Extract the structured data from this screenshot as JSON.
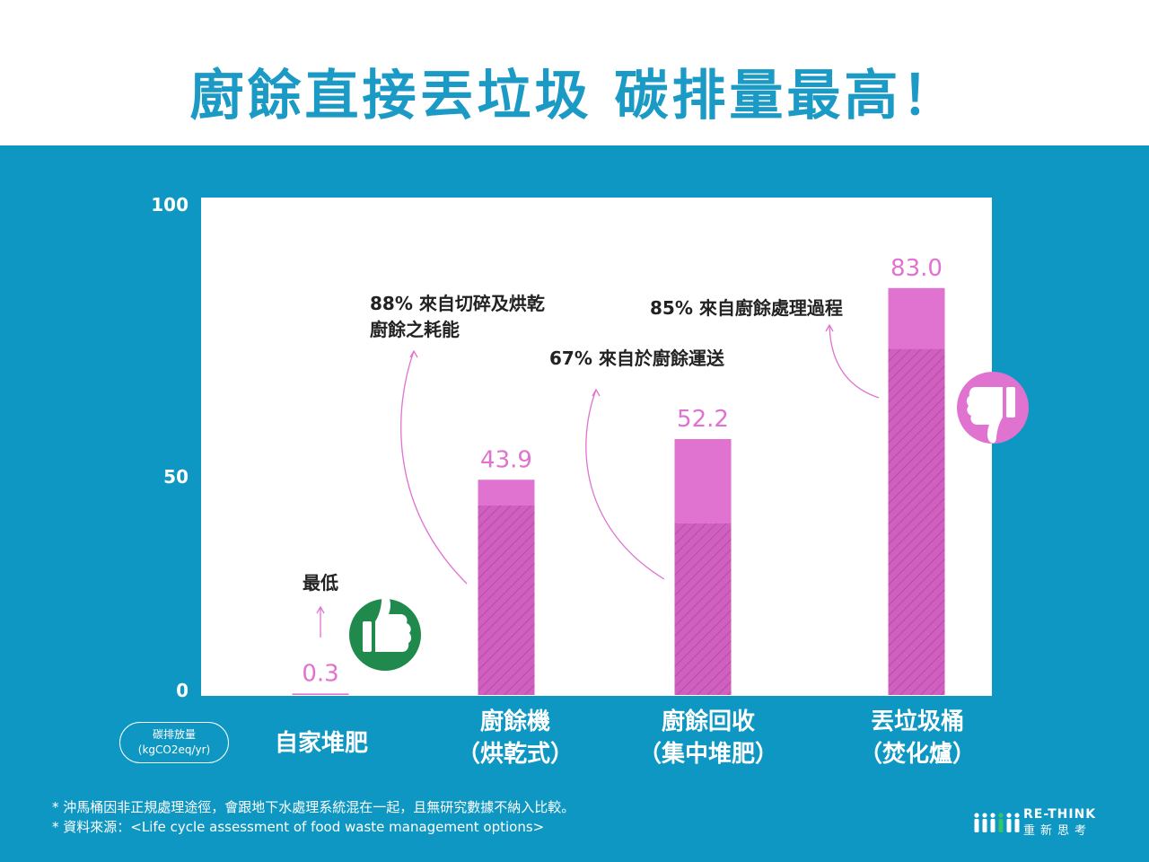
{
  "title": "廚餘直接丟垃圾 碳排量最高！",
  "colors": {
    "panel": "#0e97c2",
    "title": "#1a9ac4",
    "bar": "#e072d0",
    "bar_hatch_stroke": "#b94aa8",
    "annotation": "#e072d0",
    "thumb_up": "#1f8a4c",
    "thumb_down": "#e072d0"
  },
  "unit_label": {
    "line1": "碳排放量",
    "line2": "(kgCO2eq/yr)"
  },
  "chart_data": {
    "type": "bar",
    "stacked_portion": "hatched",
    "ylim": [
      0,
      100
    ],
    "yticks": [
      "0",
      "50",
      "100"
    ],
    "grid": false,
    "categories": [
      {
        "line1": "自家堆肥",
        "line2": ""
      },
      {
        "line1": "廚餘機",
        "line2": "（烘乾式）"
      },
      {
        "line1": "廚餘回收",
        "line2": "（集中堆肥）"
      },
      {
        "line1": "丟垃圾桶",
        "line2": "（焚化爐）"
      }
    ],
    "values": [
      0.3,
      43.9,
      52.2,
      83.0
    ],
    "value_labels": [
      "0.3",
      "43.9",
      "52.2",
      "83.0"
    ],
    "hatched_share": [
      0,
      0.88,
      0.67,
      0.85
    ],
    "annotations": [
      {
        "bar": 0,
        "text_lines": [
          "最低"
        ]
      },
      {
        "bar": 1,
        "text_lines": [
          "88% 來自切碎及烘乾",
          "廚餘之耗能"
        ]
      },
      {
        "bar": 2,
        "text_lines": [
          "67% 來自於廚餘運送"
        ]
      },
      {
        "bar": 3,
        "text_lines": [
          "85% 來自廚餘處理過程"
        ]
      }
    ],
    "icons": [
      {
        "bar": 0,
        "icon": "thumbs-up-icon"
      },
      {
        "bar": 3,
        "icon": "thumbs-down-icon"
      }
    ]
  },
  "footnotes": [
    "*  沖馬桶因非正規處理途徑，會跟地下水處理系統混在一起，且無研究數據不納入比較。",
    "*  資料來源：<Life cycle assessment of food waste management options>"
  ],
  "logo": {
    "brand": "RE-THINK",
    "sub": "重新思考"
  }
}
